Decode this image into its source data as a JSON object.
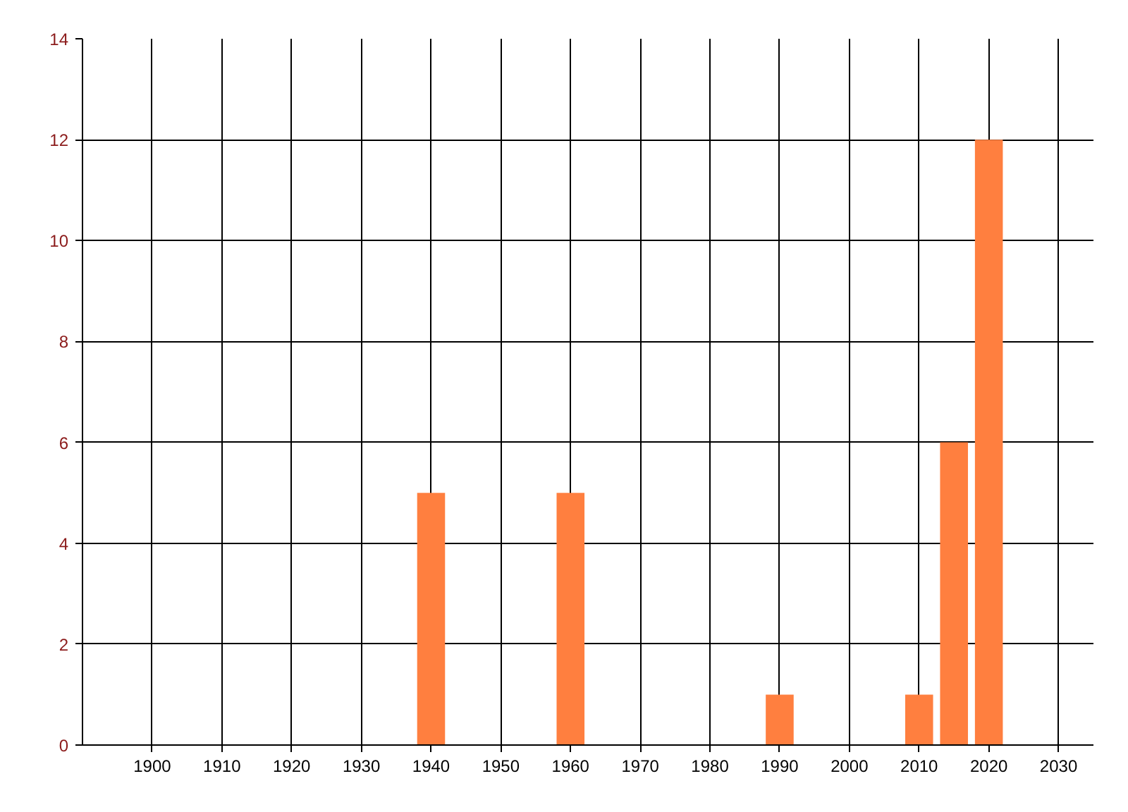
{
  "chart_data": {
    "type": "bar",
    "x": [
      1940,
      1960,
      1990,
      2010,
      2015,
      2020
    ],
    "values": [
      5,
      5,
      1,
      1,
      6,
      12
    ],
    "color": "#ff7f3f",
    "xlim": [
      1890,
      2035
    ],
    "xticks": [
      1900,
      1910,
      1920,
      1930,
      1940,
      1950,
      1960,
      1970,
      1980,
      1990,
      2000,
      2010,
      2020,
      2030
    ],
    "ylim": [
      0,
      14
    ],
    "yticks": [
      0,
      2,
      4,
      6,
      8,
      10,
      12,
      14
    ],
    "grid": true
  }
}
